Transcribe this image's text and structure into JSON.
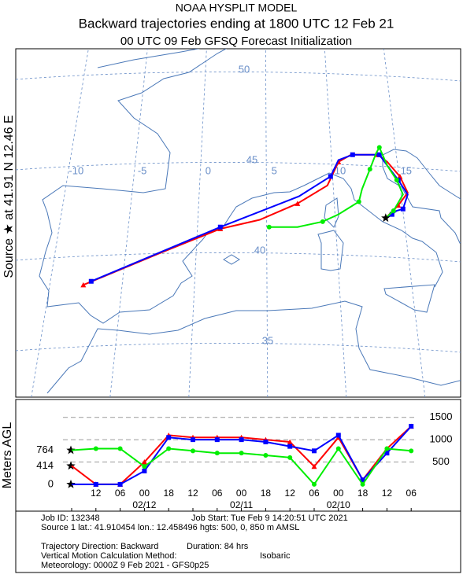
{
  "header": {
    "title": "NOAA HYSPLIT MODEL",
    "subtitle": "Backward trajectories ending at 1800 UTC 12 Feb 21",
    "subtitle2": "00 UTC 09 Feb    GFSQ  Forecast Initialization"
  },
  "source_label": "Source ★ at  41.91 N  12.46 E",
  "map": {
    "lat_lines": [
      50,
      45,
      40,
      35
    ],
    "lon_lines": [
      -10,
      -5,
      0,
      5,
      10,
      15
    ],
    "trajectories": [
      {
        "color": "#ff0000",
        "lon": [
          12.5,
          13.3,
          13.9,
          13.4,
          12.6,
          12.0,
          10.3,
          9.5,
          8.8,
          6.9,
          4.5,
          2.0,
          -2.0,
          -6.7
        ],
        "lat": [
          41.9,
          42.6,
          43.3,
          44.2,
          45.0,
          45.4,
          45.4,
          45.0,
          43.7,
          42.7,
          41.8,
          41.3,
          39.9,
          38.2
        ]
      },
      {
        "color": "#0000ff",
        "lon": [
          12.5,
          12.9,
          13.2,
          13.6,
          13.9,
          13.3,
          12.6,
          12.1,
          11.4,
          10.4,
          9.5,
          9.0,
          7.0,
          2.0,
          -2.1,
          -6.2
        ],
        "lat": [
          41.9,
          42.1,
          42.3,
          42.4,
          43.2,
          44.0,
          44.8,
          45.4,
          45.4,
          45.4,
          45.1,
          44.2,
          43.1,
          41.4,
          39.9,
          38.4
        ]
      },
      {
        "color": "#00ee00",
        "lon": [
          12.5,
          13.0,
          13.6,
          13.2,
          12.6,
          12.1,
          11.9,
          11.5,
          11.0,
          10.8,
          9.5,
          8.5,
          6.9,
          5.1
        ],
        "lat": [
          41.9,
          42.3,
          43.2,
          44.0,
          44.8,
          45.8,
          45.5,
          44.6,
          43.5,
          42.8,
          42.1,
          41.7,
          41.4,
          41.4
        ]
      }
    ]
  },
  "chart_data": {
    "type": "line",
    "y_label": "Meters AGL",
    "categories": [
      null,
      "12",
      "06",
      "00",
      "18",
      "12",
      "06",
      "00",
      "18",
      "12",
      "06",
      "00",
      "18",
      "12",
      "06"
    ],
    "date_labels": [
      "02/12",
      "02/11",
      "02/10"
    ],
    "start_heights": [
      0,
      414,
      764
    ],
    "series": [
      {
        "color": "#ff0000",
        "values": [
          414,
          0,
          0,
          500,
          1100,
          1050,
          1050,
          1050,
          1000,
          950,
          400,
          1050,
          100,
          800,
          1300
        ]
      },
      {
        "color": "#0000ff",
        "values": [
          0,
          0,
          0,
          300,
          1050,
          1000,
          1000,
          1000,
          950,
          850,
          750,
          1100,
          100,
          700,
          1300
        ]
      },
      {
        "color": "#00ee00",
        "values": [
          764,
          800,
          800,
          400,
          800,
          750,
          700,
          700,
          650,
          600,
          0,
          800,
          0,
          800,
          750
        ]
      }
    ],
    "ylim": [
      -600,
      1900
    ],
    "yticks": [
      500,
      1000,
      1500
    ],
    "grid": true
  },
  "footer": {
    "job_id": "Job ID: 132348",
    "job_start": "Job Start: Tue Feb  9 14:20:51 UTC 2021",
    "source": "Source 1 lat.: 41.910454  lon.: 12.458496  hgts: 500, 0, 850 m AMSL",
    "direction": "Trajectory Direction: Backward",
    "duration": "Duration: 84 hrs",
    "vertical": "Vertical Motion Calculation Method:",
    "vertical_method": "Isobaric",
    "meteorology": "Meteorology: 0000Z  9 Feb 2021 - GFS0p25"
  }
}
